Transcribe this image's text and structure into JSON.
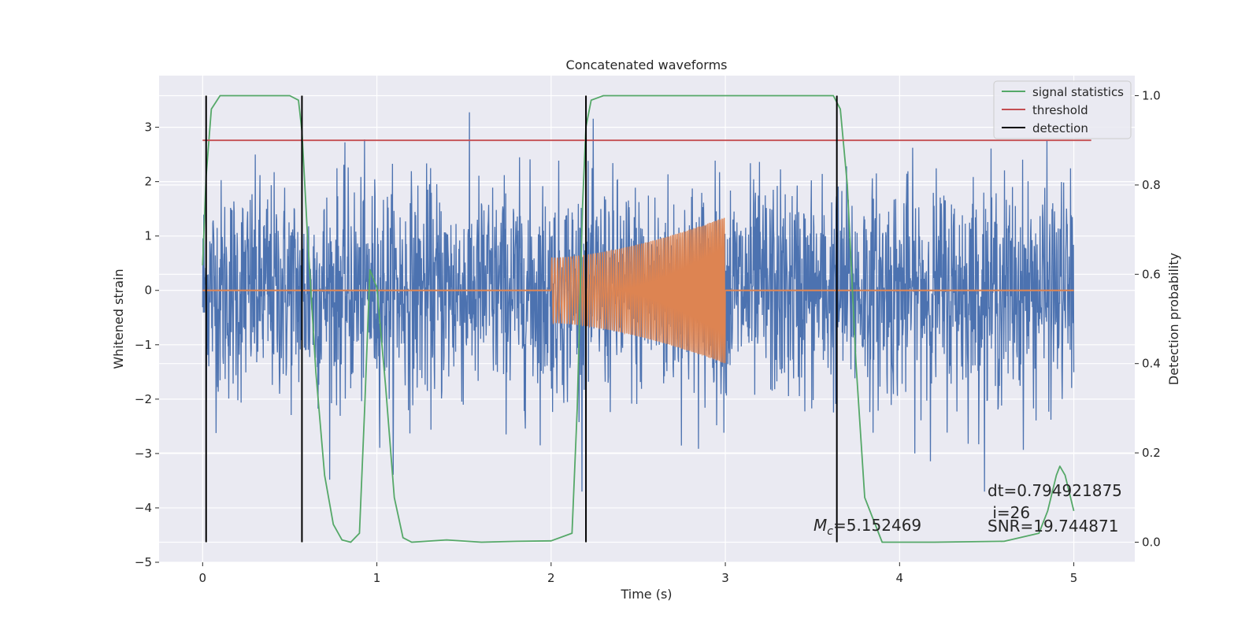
{
  "chart_data": {
    "type": "line",
    "title": "Concatenated waveforms",
    "xlabel": "Time (s)",
    "ylabel": "Whitened strain",
    "y2label": "Detection probability",
    "xlim": [
      -0.25,
      5.35
    ],
    "ylim": [
      -5,
      3.95
    ],
    "y2lim": [
      -0.045,
      1.045
    ],
    "xticks": [
      0,
      1,
      2,
      3,
      4,
      5
    ],
    "yticks": [
      -5,
      -4,
      -3,
      -2,
      -1,
      0,
      1,
      2,
      3
    ],
    "y2ticks": [
      0.0,
      0.2,
      0.4,
      0.6,
      0.8,
      1.0
    ],
    "grid": true,
    "legend_position": "top-right",
    "series": [
      {
        "name": "",
        "axis": "left",
        "color": "#4c72b0",
        "kind": "noise",
        "x_range": [
          0,
          5
        ],
        "typical_amplitude": 1.0,
        "peak_values": [
          3.4,
          3.3,
          3.2,
          3.1,
          -3.2,
          -3.1,
          -3.4,
          -3.7,
          -3.35
        ]
      },
      {
        "name": "",
        "axis": "left",
        "color": "#dd8452",
        "kind": "chirp",
        "baseline": 0,
        "x_range": [
          0,
          5
        ],
        "chirp_start": 2.0,
        "chirp_end": 3.0,
        "amplitude_start": 0.6,
        "amplitude_end": 1.35
      },
      {
        "name": "signal statistics",
        "axis": "right",
        "color": "#55a868",
        "x": [
          0,
          0.02,
          0.05,
          0.1,
          0.3,
          0.5,
          0.55,
          0.57,
          0.6,
          0.65,
          0.7,
          0.75,
          0.8,
          0.85,
          0.9,
          0.93,
          0.96,
          1.0,
          1.05,
          1.1,
          1.15,
          1.2,
          1.4,
          1.6,
          1.8,
          2.0,
          2.12,
          2.15,
          2.18,
          2.2,
          2.23,
          2.3,
          2.5,
          3.0,
          3.5,
          3.62,
          3.66,
          3.7,
          3.75,
          3.8,
          3.9,
          4.2,
          4.6,
          4.8,
          4.85,
          4.9,
          4.92,
          4.95,
          5.0
        ],
        "y": [
          0.62,
          0.82,
          0.97,
          1.0,
          1.0,
          1.0,
          0.99,
          0.92,
          0.7,
          0.38,
          0.15,
          0.04,
          0.005,
          0.0,
          0.02,
          0.3,
          0.61,
          0.57,
          0.35,
          0.1,
          0.01,
          0.0,
          0.005,
          0.0,
          0.002,
          0.003,
          0.02,
          0.3,
          0.75,
          0.93,
          0.99,
          1.0,
          1.0,
          1.0,
          1.0,
          1.0,
          0.97,
          0.8,
          0.4,
          0.1,
          0.0,
          0.0,
          0.002,
          0.02,
          0.07,
          0.15,
          0.17,
          0.15,
          0.07
        ]
      },
      {
        "name": "threshold",
        "axis": "right",
        "color": "#c44e52",
        "x": [
          0,
          5.1
        ],
        "y": [
          0.9,
          0.9
        ]
      },
      {
        "name": "detection",
        "axis": "right",
        "color": "#000000",
        "vertical_lines": [
          0.02,
          0.57,
          2.2,
          3.64
        ],
        "y_range": [
          0.0,
          1.0
        ]
      }
    ],
    "annotations": [
      {
        "text": "dt=0.794921875",
        "x": 4.5,
        "y": -3.7
      },
      {
        "text": " i=26",
        "x": 4.5,
        "y": -4.1
      },
      {
        "text": "SNR=19.744871",
        "x": 4.5,
        "y": -4.35
      },
      {
        "text_italic": "M",
        "text_sub": "c",
        "text": "=5.152469",
        "x": 3.5,
        "y": -4.35
      }
    ]
  }
}
